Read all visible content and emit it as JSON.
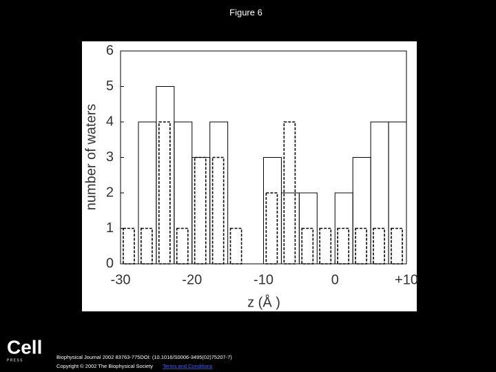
{
  "page": {
    "title": "Figure 6",
    "logo": "Cell",
    "logo_sub": "P R E S S",
    "citation": "Biophysical Journal 2002 83763-775DOI: (10.1016/S0006-3495(02)75207-7)",
    "copyright": "Copyright © 2002 The Biophysical Society",
    "link": "Terms and Conditions"
  },
  "chart_data": {
    "type": "histogram",
    "xlabel": "z (Å )",
    "ylabel": "number of waters",
    "bins": [
      -30,
      -27.5,
      -25,
      -22.5,
      -20,
      -17.5,
      -15,
      -12.5,
      -10,
      -7.5,
      -5,
      -2.5,
      0,
      2.5,
      5,
      7.5,
      10
    ],
    "series": [
      {
        "color": "#000000",
        "line_style": "solid",
        "values": [
          0,
          4,
          5,
          4,
          3,
          4,
          0,
          0,
          3,
          2,
          2,
          0,
          2,
          3,
          4,
          4
        ]
      },
      {
        "color": "#000000",
        "line_style": "dashed",
        "values": [
          1,
          1,
          4,
          1,
          3,
          3,
          1,
          0,
          2,
          4,
          1,
          1,
          1,
          1,
          1,
          1
        ]
      }
    ],
    "xlim": [
      -30,
      10
    ],
    "xticks": [
      -30,
      -20,
      -10,
      0,
      {
        "value": 10,
        "label": "+10"
      }
    ],
    "ylim": [
      0,
      6
    ],
    "yticks": [
      0,
      1,
      2,
      3,
      4,
      5,
      6
    ]
  }
}
